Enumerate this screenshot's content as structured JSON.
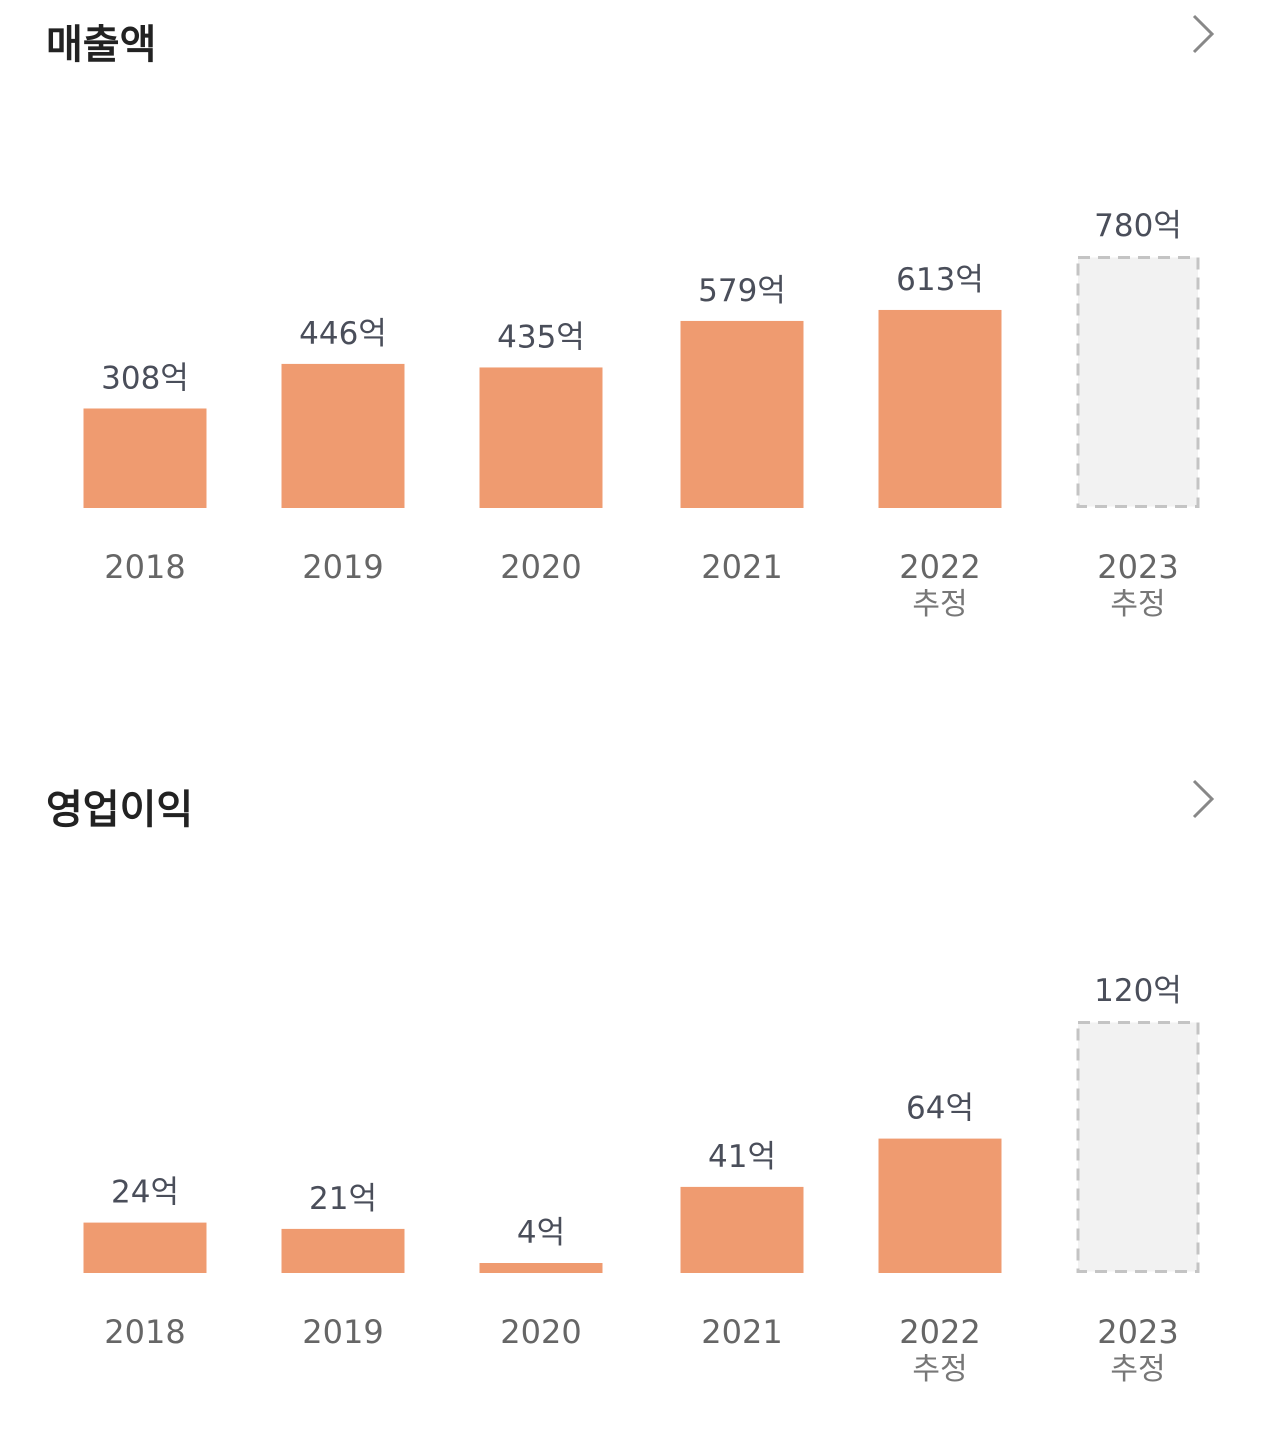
{
  "colors": {
    "bar": "#ef9b70",
    "estimate_fill": "#f2f2f2",
    "estimate_stroke": "#c4c4c4",
    "value_text": "#4a4e5a",
    "year_text": "#666666",
    "title_text": "#222222"
  },
  "icons": {
    "more": "chevron-right-icon"
  },
  "sections": [
    {
      "title": "매출액"
    },
    {
      "title": "영업이익"
    }
  ],
  "chart_data": [
    {
      "type": "bar",
      "title": "매출액",
      "categories": [
        "2018",
        "2019",
        "2020",
        "2021",
        "2022",
        "2023"
      ],
      "sublabels": [
        "",
        "",
        "",
        "",
        "추정",
        "추정"
      ],
      "values": [
        308,
        446,
        435,
        579,
        613,
        780
      ],
      "value_labels": [
        "308억",
        "446억",
        "435억",
        "579억",
        "613억",
        "780억"
      ],
      "estimate_outline": [
        false,
        false,
        false,
        false,
        false,
        true
      ],
      "ylim": [
        0,
        780
      ]
    },
    {
      "type": "bar",
      "title": "영업이익",
      "categories": [
        "2018",
        "2019",
        "2020",
        "2021",
        "2022",
        "2023"
      ],
      "sublabels": [
        "",
        "",
        "",
        "",
        "추정",
        "추정"
      ],
      "values": [
        24,
        21,
        4,
        41,
        64,
        120
      ],
      "value_labels": [
        "24억",
        "21억",
        "4억",
        "41억",
        "64억",
        "120억"
      ],
      "estimate_outline": [
        false,
        false,
        false,
        false,
        false,
        true
      ],
      "ylim": [
        0,
        120
      ]
    }
  ]
}
